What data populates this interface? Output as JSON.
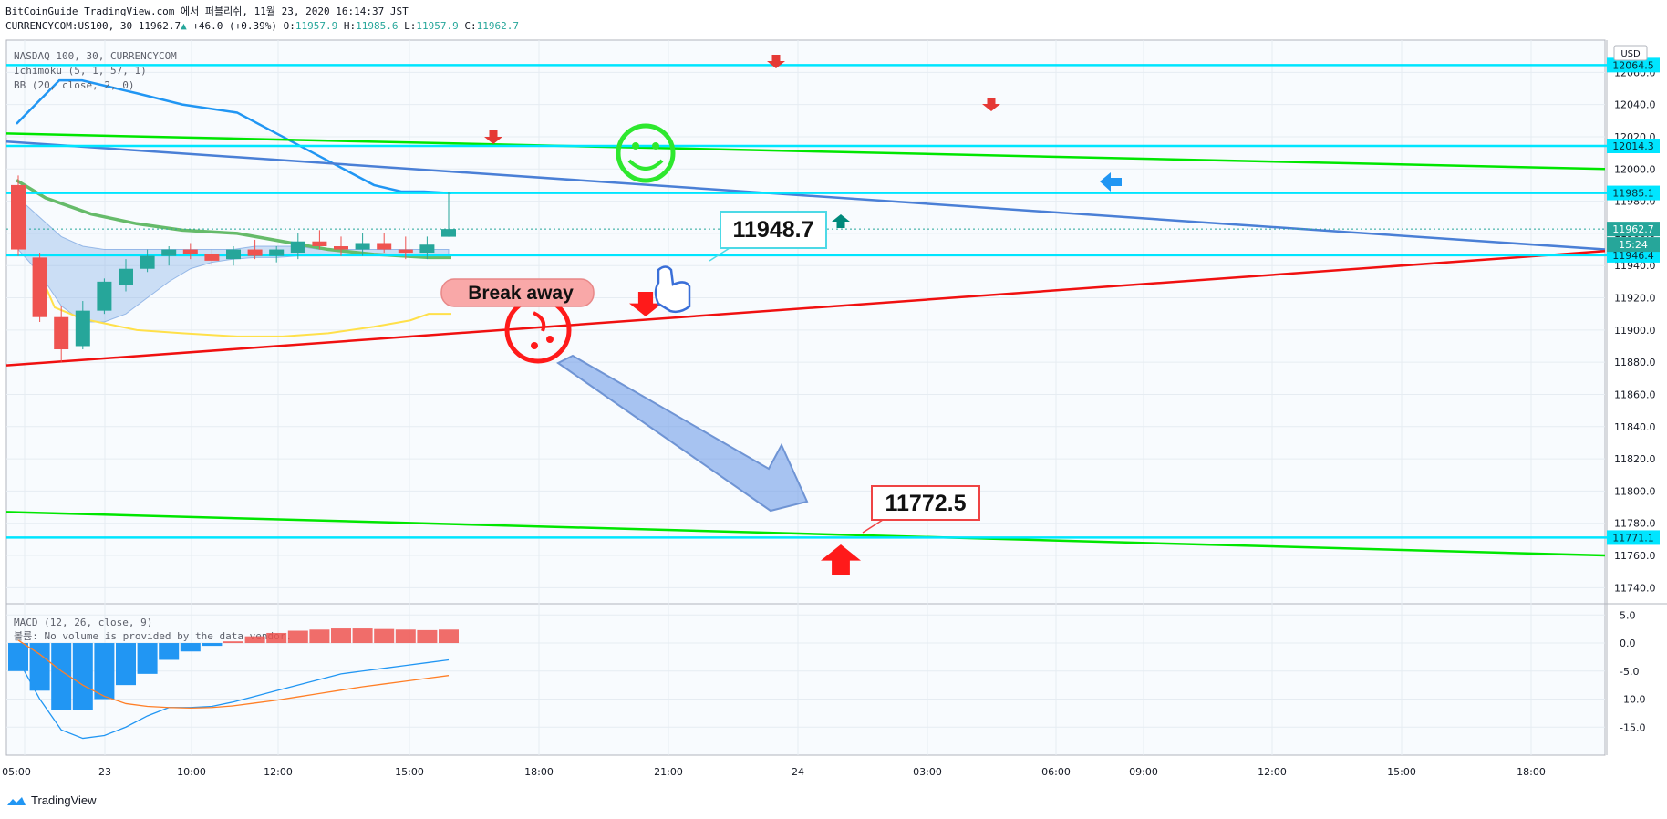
{
  "header": {
    "line1": "BitCoinGuide TradingView.com 에서 퍼블리쉬, 11월 23, 2020 16:14:37 JST",
    "symbol": "CURRENCYCOM:US100, 30",
    "last": "11962.7",
    "change": "+46.0 (+0.39%)",
    "o_label": "O:",
    "o": "11957.9",
    "h_label": "H:",
    "h": "11985.6",
    "l_label": "L:",
    "l": "11957.9",
    "c_label": "C:",
    "c": "11962.7"
  },
  "legend": [
    "NASDAQ 100, 30, CURRENCYCOM",
    "Ichimoku (5, 1, 57, 1)",
    "BB (20, close, 2, 0)"
  ],
  "macd_legend": [
    "MACD (12, 26, close, 9)",
    "볼륨: No volume is provided by the data vendor."
  ],
  "currency": "USD",
  "footer_brand": "TradingView",
  "colors": {
    "up": "#26a69a",
    "down": "#ef5350",
    "cyan": "#00e5ff",
    "green_line": "#00e600",
    "red_line": "#f01010",
    "blue_line": "#4a7fd6",
    "macd_blue": "#2196f3",
    "macd_red": "#ef5350"
  },
  "chart_data": {
    "type": "candlestick",
    "price_axis": {
      "ylim": [
        11730,
        12080
      ],
      "ticks": [
        11740,
        11760,
        11780,
        11800,
        11820,
        11840,
        11860,
        11880,
        11900,
        11920,
        11940,
        11960,
        11980,
        12000,
        12020,
        12040,
        12060
      ]
    },
    "time_axis_labels": [
      "05:00",
      "23",
      "10:00",
      "12:00",
      "15:00",
      "18:00",
      "21:00",
      "24",
      "03:00",
      "06:00",
      "09:00",
      "12:00",
      "15:00",
      "18:00"
    ],
    "candles": [
      [
        11990,
        11996,
        11946,
        11950
      ],
      [
        11945,
        11948,
        11905,
        11908
      ],
      [
        11908,
        11915,
        11880,
        11888
      ],
      [
        11890,
        11918,
        11888,
        11912
      ],
      [
        11912,
        11932,
        11910,
        11930
      ],
      [
        11928,
        11944,
        11924,
        11938
      ],
      [
        11938,
        11950,
        11936,
        11946
      ],
      [
        11946,
        11952,
        11940,
        11950
      ],
      [
        11950,
        11954,
        11944,
        11947
      ],
      [
        11947,
        11950,
        11940,
        11943
      ],
      [
        11944,
        11952,
        11940,
        11950
      ],
      [
        11950,
        11956,
        11944,
        11946
      ],
      [
        11946,
        11952,
        11942,
        11950
      ],
      [
        11948,
        11960,
        11944,
        11955
      ],
      [
        11955,
        11962,
        11950,
        11952
      ],
      [
        11952,
        11958,
        11946,
        11950
      ],
      [
        11950,
        11960,
        11946,
        11954
      ],
      [
        11954,
        11960,
        11948,
        11950
      ],
      [
        11950,
        11958,
        11944,
        11948
      ],
      [
        11948,
        11958,
        11944,
        11953
      ],
      [
        11957.9,
        11985.6,
        11957.9,
        11962.7
      ]
    ],
    "price_levels": [
      {
        "label": "12064.5",
        "value": 12064.5
      },
      {
        "label": "12014.3",
        "value": 12014.3
      },
      {
        "label": "11985.1",
        "value": 11985.1
      },
      {
        "label": "11946.4",
        "value": 11946.4
      },
      {
        "label": "11771.1",
        "value": 11771.1
      }
    ],
    "last_price": {
      "label": "11962.7",
      "value": 11962.7,
      "countdown": "15:24"
    },
    "annotations": {
      "callout_1": "11948.7",
      "callout_2": "11772.5",
      "bubble": "Break away"
    },
    "macd": {
      "ylim": [
        -20,
        7
      ],
      "ticks": [
        {
          "label": "5.0",
          "value": 5
        },
        {
          "label": "0.0",
          "value": 0
        },
        {
          "label": "-5.0",
          "value": -5
        },
        {
          "label": "-10.0",
          "value": -10
        },
        {
          "label": "-15.0",
          "value": -15
        }
      ],
      "histogram": [
        -5,
        -8.5,
        -12,
        -12,
        -10,
        -7.5,
        -5.5,
        -3,
        -1.5,
        -0.5,
        0.3,
        1.2,
        1.8,
        2.2,
        2.4,
        2.6,
        2.6,
        2.5,
        2.4,
        2.3,
        2.4
      ],
      "macd_line": [
        -3,
        -10,
        -15.5,
        -17,
        -16.5,
        -15,
        -13,
        -11.5,
        -11.5,
        -11.3,
        -10.5,
        -9.5,
        -8.5,
        -7.5,
        -6.5,
        -5.5,
        -5,
        -4.5,
        -4,
        -3.5,
        -3
      ],
      "signal_line": [
        0.5,
        -2,
        -5,
        -7.5,
        -9.5,
        -10.8,
        -11.3,
        -11.5,
        -11.6,
        -11.5,
        -11.2,
        -10.7,
        -10.2,
        -9.6,
        -9,
        -8.4,
        -7.8,
        -7.3,
        -6.8,
        -6.3,
        -5.8
      ]
    }
  }
}
